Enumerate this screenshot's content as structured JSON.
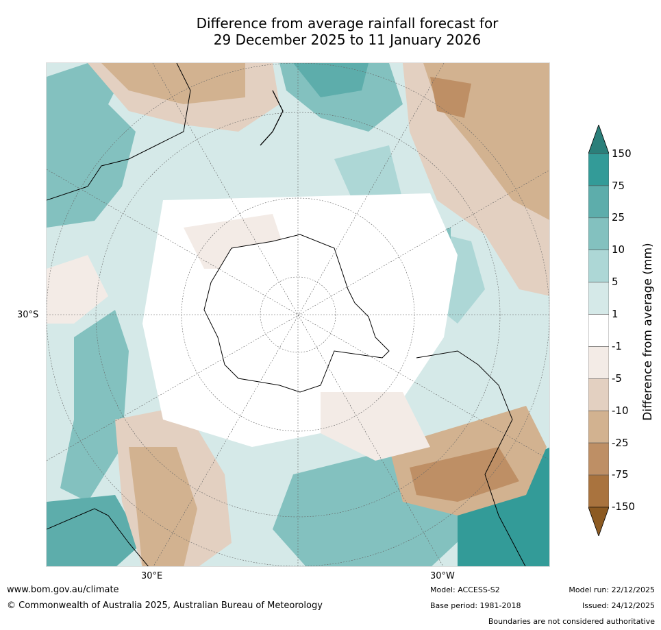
{
  "title": {
    "line1": "Difference from average rainfall forecast for",
    "line2": "29 December 2025 to 11 January 2026"
  },
  "map": {
    "projection": "south-polar-stereographic",
    "axis_labels": {
      "left": "30°S",
      "bottom_left": "30°E",
      "bottom_right": "30°W"
    }
  },
  "colorbar": {
    "label": "Difference from average (mm)",
    "ticks": [
      "150",
      "75",
      "25",
      "10",
      "5",
      "1",
      "-1",
      "-5",
      "-10",
      "-25",
      "-75",
      "-150"
    ],
    "colors": {
      "over_150": "#2b7f7a",
      "c75_150": "#339b98",
      "c25_75": "#5dadab",
      "c10_25": "#83c1bf",
      "c5_10": "#add7d6",
      "c1_5": "#d5e9e8",
      "cneg1_1": "#ffffff",
      "cneg5_neg1": "#f3ebe6",
      "cneg10_neg5": "#e3d0c1",
      "cneg25_neg10": "#d2b290",
      "cneg75_neg25": "#be8f65",
      "cneg150_neg75": "#a9733e",
      "under_neg150": "#8c5a22"
    }
  },
  "footer": {
    "website": "www.bom.gov.au/climate",
    "copyright": "© Commonwealth of Australia 2025, Australian Bureau of Meteorology",
    "model": "Model: ACCESS-S2",
    "base_period": "Base period: 1981-2018",
    "model_run": "Model run: 22/12/2025",
    "issued": "Issued: 24/12/2025",
    "disclaimer": "Boundaries are not considered authoritative"
  }
}
